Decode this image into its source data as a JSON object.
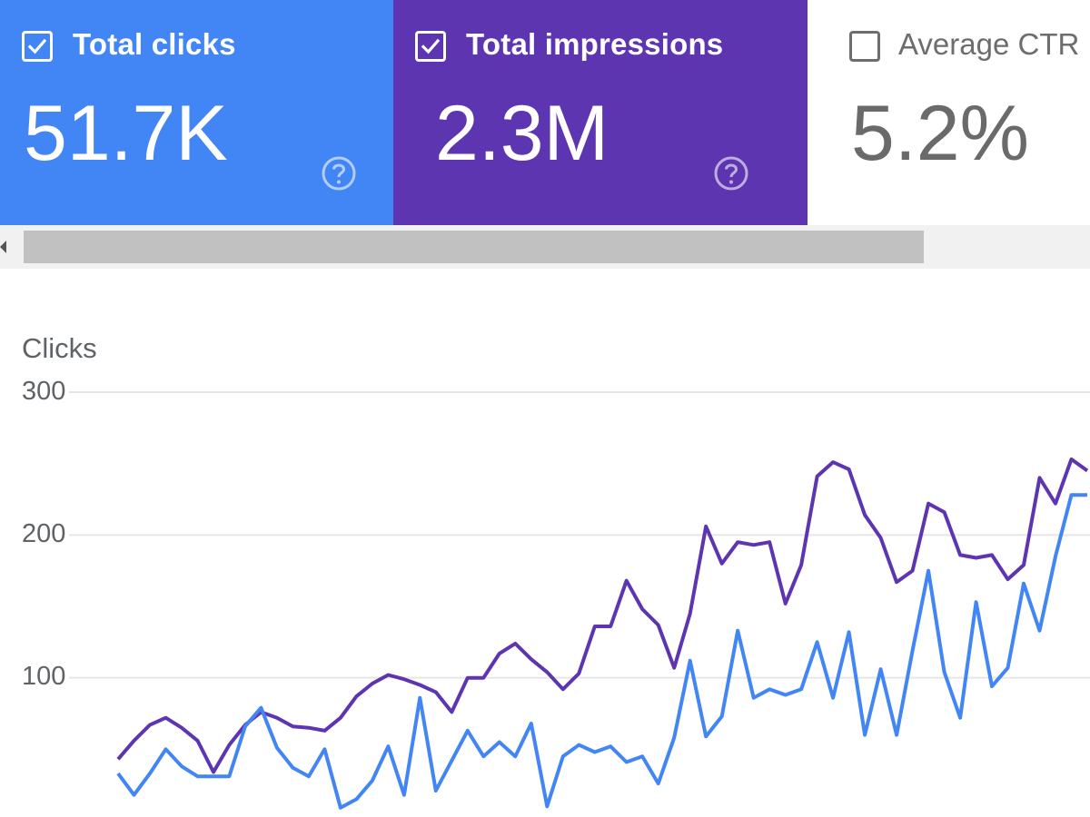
{
  "cards": [
    {
      "label": "Total clicks",
      "value": "51.7K",
      "checked": true,
      "bg": "#4285f4"
    },
    {
      "label": "Total impressions",
      "value": "2.3M",
      "checked": true,
      "bg": "#5e35b1"
    },
    {
      "label": "Average CTR",
      "value": "5.2%",
      "checked": false,
      "bg": "#ffffff"
    }
  ],
  "chart_data": {
    "type": "line",
    "ylabel": "Clicks",
    "ylim": [
      0,
      300
    ],
    "y_ticks": [
      "300",
      "200",
      "100"
    ],
    "y_tick_values": [
      300,
      200,
      100
    ],
    "grid": true,
    "series": [
      {
        "color": "#5e35b1",
        "values": [
          43,
          56,
          67,
          72,
          65,
          56,
          34,
          53,
          67,
          76,
          72,
          66,
          65,
          63,
          72,
          87,
          96,
          102,
          99,
          95,
          90,
          76,
          100,
          100,
          117,
          124,
          113,
          104,
          92,
          103,
          136,
          136,
          168,
          148,
          137,
          107,
          145,
          206,
          180,
          195,
          193,
          195,
          152,
          179,
          241,
          251,
          246,
          214,
          198,
          167,
          175,
          222,
          216,
          186,
          184,
          186,
          169,
          179,
          240,
          222,
          253,
          245
        ]
      },
      {
        "color": "#4285f4",
        "values": [
          33,
          18,
          33,
          50,
          38,
          31,
          31,
          31,
          66,
          79,
          51,
          37,
          31,
          50,
          9,
          15,
          28,
          52,
          18,
          86,
          21,
          42,
          63,
          45,
          55,
          45,
          68,
          10,
          45,
          53,
          48,
          52,
          41,
          45,
          26,
          58,
          112,
          59,
          73,
          133,
          86,
          92,
          88,
          92,
          125,
          86,
          132,
          60,
          106,
          60,
          119,
          175,
          104,
          72,
          153,
          94,
          107,
          166,
          133,
          185,
          228,
          228
        ]
      }
    ]
  },
  "colors": {
    "clicks": "#4285f4",
    "impressions": "#5e35b1",
    "grid": "#e6e6e6"
  }
}
